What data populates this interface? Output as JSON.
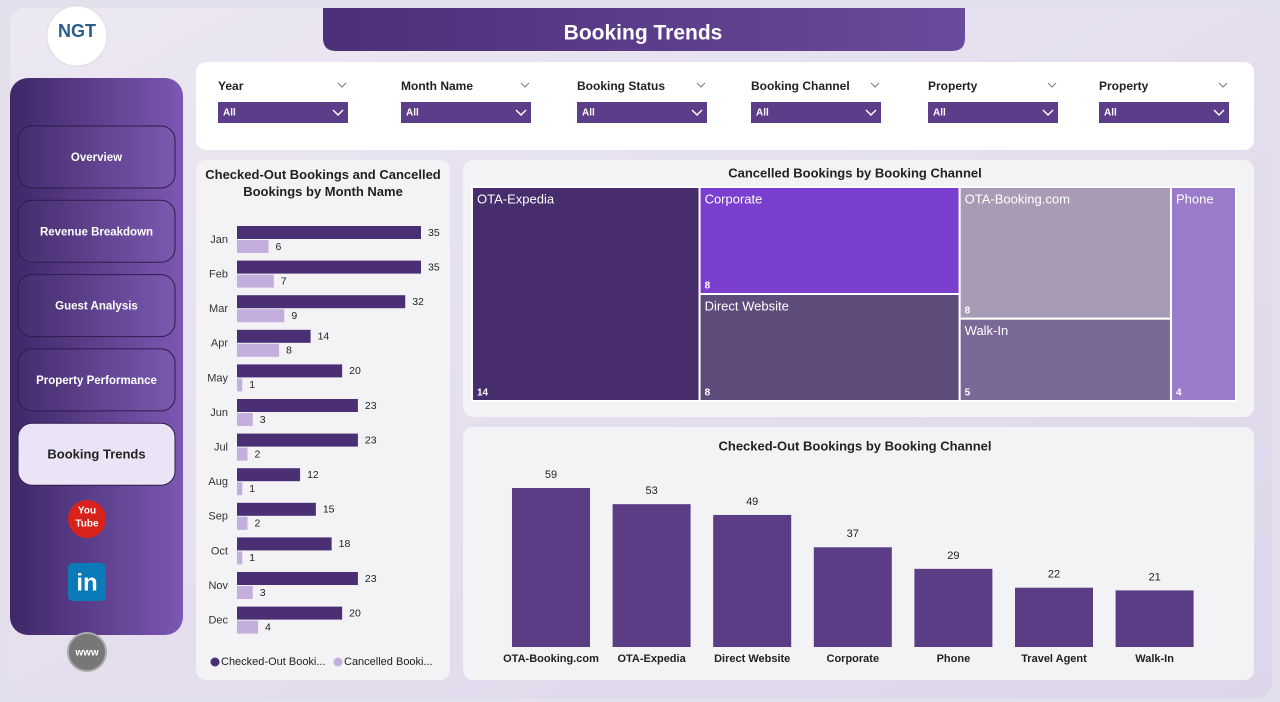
{
  "header": {
    "title": "Booking Trends",
    "logo": "NGT"
  },
  "nav": [
    "Overview",
    "Revenue Breakdown",
    "Guest Analysis",
    "Property Performance",
    "Booking Trends"
  ],
  "icons": {
    "youtube_top": "You",
    "youtube_bottom": "Tube",
    "linkedin": "in",
    "web": "www"
  },
  "filters": [
    {
      "label": "Year",
      "value": "All"
    },
    {
      "label": "Month Name",
      "value": "All"
    },
    {
      "label": "Booking Status",
      "value": "All"
    },
    {
      "label": "Booking Channel",
      "value": "All"
    },
    {
      "label": "Property",
      "value": "All"
    },
    {
      "label": "Property",
      "value": "All"
    }
  ],
  "chart_data": [
    {
      "type": "hbar",
      "title": "Checked-Out Bookings and Cancelled Bookings by Month Name",
      "categories": [
        "Jan",
        "Feb",
        "Mar",
        "Apr",
        "May",
        "Jun",
        "Jul",
        "Aug",
        "Sep",
        "Oct",
        "Nov",
        "Dec"
      ],
      "series": [
        {
          "name": "Checked-Out Booki...",
          "color": "#4a2f74",
          "values": [
            35,
            35,
            32,
            14,
            20,
            23,
            23,
            12,
            15,
            18,
            23,
            20
          ]
        },
        {
          "name": "Cancelled Booki...",
          "color": "#c3aedd",
          "values": [
            6,
            7,
            9,
            8,
            1,
            3,
            2,
            1,
            2,
            1,
            3,
            4
          ]
        }
      ]
    },
    {
      "type": "treemap",
      "title": "Cancelled Bookings by Booking Channel",
      "categories": [
        "OTA-Expedia",
        "Corporate",
        "Direct Website",
        "OTA-Booking.com",
        "Walk-In",
        "Phone"
      ],
      "values": [
        14,
        8,
        8,
        8,
        5,
        4
      ],
      "colors": [
        "#472d6b",
        "#7b3fcf",
        "#5f4b7a",
        "#a79bb5",
        "#7a6896",
        "#9a7ccb"
      ]
    },
    {
      "type": "bar",
      "title": "Checked-Out Bookings by Booking Channel",
      "categories": [
        "OTA-Booking.com",
        "OTA-Expedia",
        "Direct Website",
        "Corporate",
        "Phone",
        "Travel Agent",
        "Walk-In"
      ],
      "values": [
        59,
        53,
        49,
        37,
        29,
        22,
        21
      ],
      "color": "#5b3d85"
    }
  ]
}
